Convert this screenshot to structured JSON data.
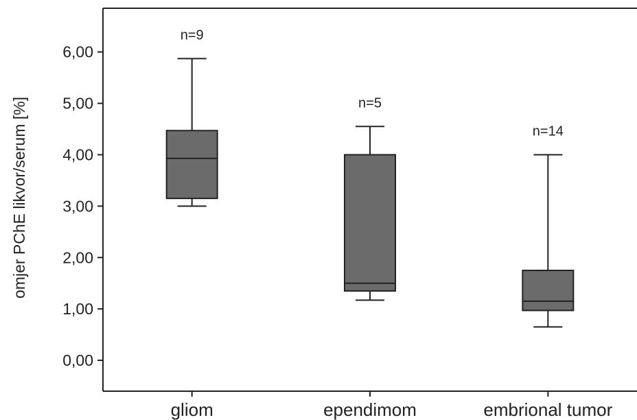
{
  "chart_data": {
    "type": "box",
    "title": "",
    "xlabel": "",
    "ylabel": "omjer PChE likvor/serum [%]",
    "ylim": [
      -0.6,
      6.85
    ],
    "yticks": [
      0,
      1,
      2,
      3,
      4,
      5,
      6
    ],
    "ytick_labels": [
      "0,00",
      "1,00",
      "2,00",
      "3,00",
      "4,00",
      "5,00",
      "6,00"
    ],
    "grid": false,
    "categories": [
      "gliom",
      "ependimom",
      "embrional tumor"
    ],
    "annotations": [
      "n=9",
      "n=5",
      "n=14"
    ],
    "boxes": [
      {
        "category": "gliom",
        "n_label": "n=9",
        "whisker_low": 3.0,
        "q1": 3.15,
        "median": 3.93,
        "q3": 4.47,
        "whisker_high": 5.87
      },
      {
        "category": "ependimom",
        "n_label": "n=5",
        "whisker_low": 1.17,
        "q1": 1.35,
        "median": 1.5,
        "q3": 4.0,
        "whisker_high": 4.55
      },
      {
        "category": "embrional tumor",
        "n_label": "n=14",
        "whisker_low": 0.65,
        "q1": 0.97,
        "median": 1.15,
        "q3": 1.75,
        "whisker_high": 4.0
      }
    ],
    "colors": {
      "box_fill": "#6b6b6b",
      "line": "#222222"
    }
  }
}
